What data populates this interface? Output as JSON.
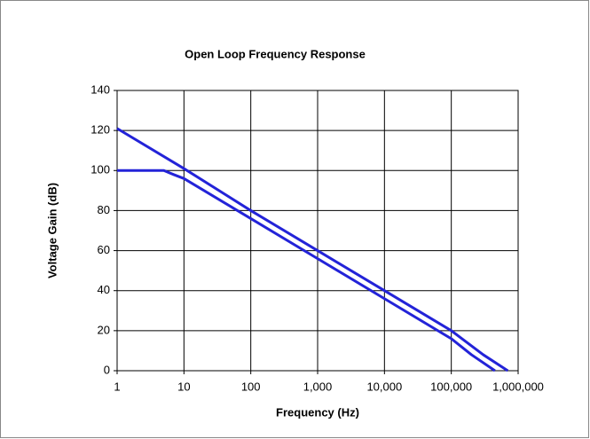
{
  "chart_data": {
    "type": "line",
    "title": "Open Loop Frequency Response",
    "xlabel": "Frequency (Hz)",
    "ylabel": "Voltage Gain (dB)",
    "xscale": "log",
    "grid": true,
    "xlim": [
      1,
      1000000
    ],
    "xticks": [
      1,
      10,
      100,
      {
        "value": 1000,
        "label": "1,000"
      },
      {
        "value": 10000,
        "label": "10,000"
      },
      {
        "value": 100000,
        "label": "100,000"
      },
      {
        "value": 1000000,
        "label": "1,000,000"
      }
    ],
    "ylim": [
      0,
      140
    ],
    "yticks": [
      0,
      20,
      40,
      60,
      80,
      100,
      120,
      140
    ],
    "series": [
      {
        "color": "#2323d8",
        "x": [
          1,
          10,
          100,
          1000,
          10000,
          100000,
          300000,
          700000
        ],
        "values": [
          121,
          101,
          80,
          60,
          40,
          20,
          8,
          0
        ]
      },
      {
        "color": "#2323d8",
        "x": [
          1,
          5,
          7,
          10,
          100,
          1000,
          10000,
          100000,
          200000,
          450000
        ],
        "values": [
          100,
          100,
          98,
          96,
          76,
          56,
          36,
          16,
          8,
          0
        ]
      }
    ]
  }
}
